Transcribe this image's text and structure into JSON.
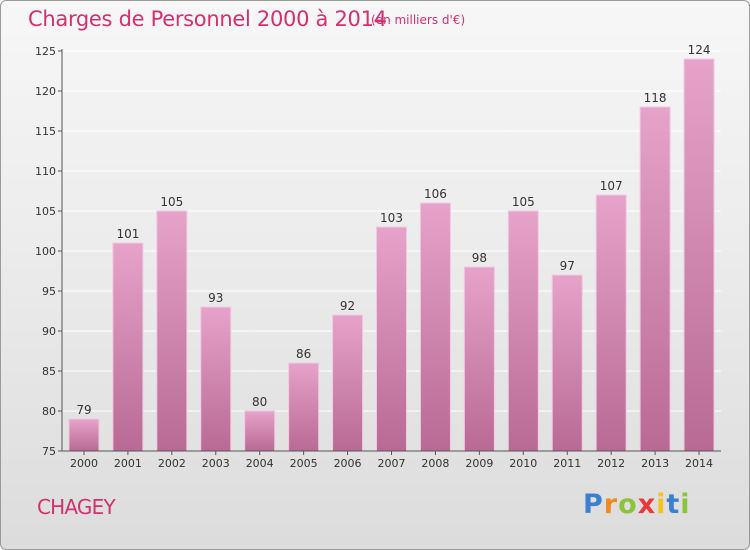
{
  "title": "Charges de Personnel 2000 à 2014",
  "subtitle": "(en milliers d'€)",
  "town": "CHAGEY",
  "logo": {
    "letters": [
      "P",
      "r",
      "o",
      "x",
      "i",
      "t",
      "i"
    ],
    "colors": [
      "#3b7fd0",
      "#f08a1e",
      "#8ac43a",
      "#e8393b",
      "#f7c21b",
      "#3b7fd0",
      "#8ac43a"
    ]
  },
  "colors": {
    "bar_top": "#e6a3c9",
    "bar_bottom": "#b86a94",
    "axis": "#555555",
    "grid": "#ffffff",
    "text": "#333333",
    "accent": "#d2306f"
  },
  "chart_data": {
    "type": "bar",
    "title": "Charges de Personnel 2000 à 2014",
    "xlabel": "",
    "ylabel": "",
    "categories": [
      "2000",
      "2001",
      "2002",
      "2003",
      "2004",
      "2005",
      "2006",
      "2007",
      "2008",
      "2009",
      "2010",
      "2011",
      "2012",
      "2013",
      "2014"
    ],
    "values": [
      79,
      101,
      105,
      93,
      80,
      86,
      92,
      103,
      106,
      98,
      105,
      97,
      107,
      118,
      124
    ],
    "ylim": [
      75,
      125
    ],
    "yticks": [
      75,
      80,
      85,
      90,
      95,
      100,
      105,
      110,
      115,
      120,
      125
    ],
    "grid": true,
    "legend": "none"
  }
}
